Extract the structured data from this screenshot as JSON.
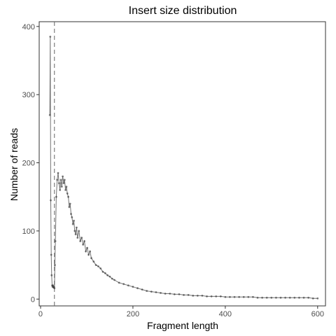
{
  "chart_data": {
    "type": "line",
    "title": "Insert size distribution",
    "xlabel": "Fragment length",
    "ylabel": "Number of reads",
    "xlim": [
      -3,
      617
    ],
    "ylim": [
      -10,
      407
    ],
    "xticks": [
      0,
      200,
      400,
      600
    ],
    "yticks": [
      0,
      100,
      200,
      300,
      400
    ],
    "grid": false,
    "vline_x": 30,
    "series": [
      {
        "x": [
          20,
          21,
          22,
          23,
          24,
          25,
          26,
          27,
          28,
          29,
          30,
          31,
          32,
          34,
          36,
          38,
          40,
          42,
          44,
          46,
          48,
          50,
          52,
          54,
          56,
          58,
          60,
          62,
          64,
          66,
          68,
          70,
          72,
          74,
          76,
          78,
          80,
          83,
          86,
          89,
          92,
          95,
          98,
          101,
          104,
          107,
          110,
          115,
          120,
          125,
          130,
          135,
          140,
          145,
          150,
          155,
          160,
          170,
          180,
          190,
          200,
          210,
          220,
          230,
          240,
          250,
          260,
          270,
          280,
          290,
          300,
          310,
          320,
          330,
          340,
          350,
          360,
          370,
          380,
          390,
          400,
          410,
          420,
          430,
          440,
          450,
          460,
          470,
          480,
          490,
          500,
          510,
          520,
          530,
          540,
          550,
          560,
          570,
          580,
          590,
          600
        ],
        "values": [
          270,
          385,
          145,
          65,
          35,
          20,
          18,
          20,
          17,
          18,
          16,
          50,
          85,
          150,
          175,
          185,
          170,
          160,
          175,
          165,
          180,
          170,
          175,
          160,
          165,
          155,
          150,
          135,
          140,
          125,
          120,
          110,
          115,
          100,
          95,
          105,
          90,
          100,
          85,
          90,
          80,
          85,
          70,
          75,
          65,
          70,
          60,
          55,
          50,
          48,
          45,
          40,
          38,
          35,
          33,
          30,
          28,
          24,
          22,
          20,
          18,
          16,
          14,
          12,
          11,
          10,
          9,
          8,
          8,
          7,
          7,
          6,
          6,
          5,
          5,
          5,
          4,
          4,
          4,
          4,
          3,
          3,
          3,
          3,
          3,
          3,
          3,
          2,
          2,
          2,
          2,
          2,
          2,
          2,
          2,
          2,
          2,
          2,
          2,
          1,
          1
        ]
      }
    ]
  }
}
